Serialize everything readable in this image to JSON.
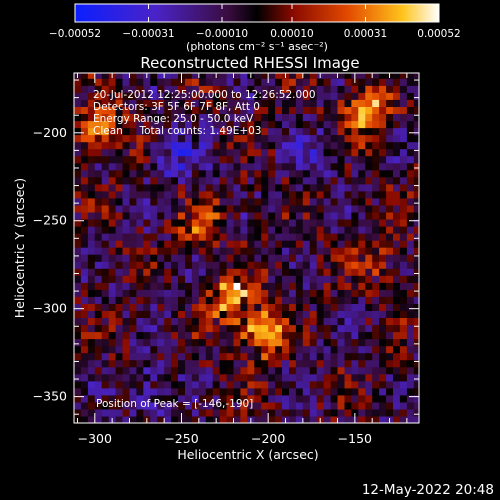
{
  "chart_data": {
    "type": "heatmap",
    "title": "Reconstructed RHESSI Image",
    "xlabel": "Heliocentric X (arcsec)",
    "ylabel": "Heliocentric Y (arcsec)",
    "xlim": [
      -312,
      -113
    ],
    "ylim": [
      -365,
      -166
    ],
    "x_ticks": [
      -300,
      -250,
      -200,
      -150
    ],
    "x_tick_labels": [
      "−300",
      "−250",
      "−200",
      "−150"
    ],
    "y_ticks": [
      -200,
      -250,
      -300,
      -350
    ],
    "y_tick_labels": [
      "−200",
      "−250",
      "−300",
      "−350"
    ],
    "colorbar": {
      "ticks": [
        -0.00052,
        -0.00031,
        -0.0001,
        0.0001,
        0.00031,
        0.00052
      ],
      "tick_labels": [
        "−0.00052",
        "−0.00031",
        "−0.00010",
        "0.00010",
        "0.00031",
        "0.00052"
      ],
      "unit_label": "(photons cm⁻² s⁻¹ asec⁻²)",
      "range": [
        -0.00052,
        0.00052
      ]
    },
    "annotations": [
      "20-Jul-2012 12:25:00.000 to 12:26:52.000",
      "Detectors: 3F 5F 6F 7F 8F, Att 0",
      "Energy Range: 25.0 - 50.0 keV",
      "Clean     Total counts: 1.49E+03"
    ],
    "peak_label": "Position of Peak = [-146,-190]",
    "peak": [
      -146,
      -190
    ],
    "bright_sources": [
      {
        "x": -225,
        "y": -295,
        "value": 0.00045
      },
      {
        "x": -205,
        "y": -315,
        "value": 0.0005
      },
      {
        "x": -146,
        "y": -190,
        "value": 0.00052
      },
      {
        "x": -298,
        "y": -200,
        "value": 0.00035
      },
      {
        "x": -240,
        "y": -255,
        "value": 0.00025
      },
      {
        "x": -140,
        "y": -275,
        "value": 0.0002
      }
    ],
    "dark_sources": [
      {
        "x": -255,
        "y": -215,
        "value": -0.0003
      },
      {
        "x": -270,
        "y": -350,
        "value": -0.00025
      },
      {
        "x": -175,
        "y": -215,
        "value": -0.0002
      }
    ]
  },
  "footer_date": "12-May-2022 20:48"
}
